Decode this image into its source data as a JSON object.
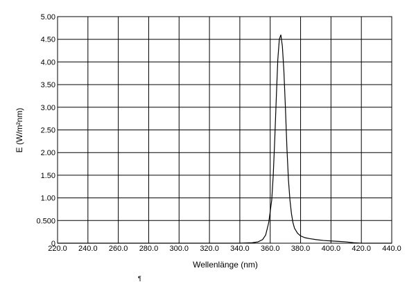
{
  "chart_data": {
    "type": "line",
    "title": "",
    "xlabel": "Wellenlänge  (nm)",
    "ylabel": "E  (W/m²nm)",
    "xlim": [
      220,
      440
    ],
    "ylim": [
      0,
      5
    ],
    "grid": true,
    "x_ticks": [
      "220.0",
      "240.0",
      "260.0",
      "280.0",
      "300.0",
      "320.0",
      "340.0",
      "360.0",
      "380.0",
      "400.0",
      "420.0",
      "440.0"
    ],
    "y_ticks": [
      "0",
      "0.500",
      "1.00",
      "1.50",
      "2.00",
      "2.50",
      "3.00",
      "3.50",
      "4.00",
      "4.50",
      "5.00"
    ],
    "y_tick_values": [
      0,
      0.5,
      1,
      1.5,
      2,
      2.5,
      3,
      3.5,
      4,
      4.5,
      5
    ],
    "x_tick_values": [
      220,
      240,
      260,
      280,
      300,
      320,
      340,
      360,
      380,
      400,
      420,
      440
    ],
    "series": [
      {
        "color": "#000000",
        "x": [
          220,
          340,
          348,
          352,
          355,
          357,
          359,
          361,
          362,
          363,
          364,
          365,
          366,
          367,
          368,
          369,
          370,
          371,
          372,
          373,
          374,
          375,
          376,
          378,
          380,
          383,
          386,
          390,
          395,
          400,
          405,
          410,
          415,
          420,
          440
        ],
        "y": [
          0,
          0,
          0.01,
          0.03,
          0.08,
          0.18,
          0.45,
          0.95,
          1.5,
          2.3,
          3.2,
          4.05,
          4.5,
          4.6,
          4.35,
          3.8,
          3.0,
          2.1,
          1.4,
          0.95,
          0.65,
          0.45,
          0.33,
          0.22,
          0.16,
          0.12,
          0.1,
          0.08,
          0.06,
          0.05,
          0.04,
          0.03,
          0.01,
          0,
          0
        ]
      }
    ]
  },
  "stray_mark": "¶"
}
